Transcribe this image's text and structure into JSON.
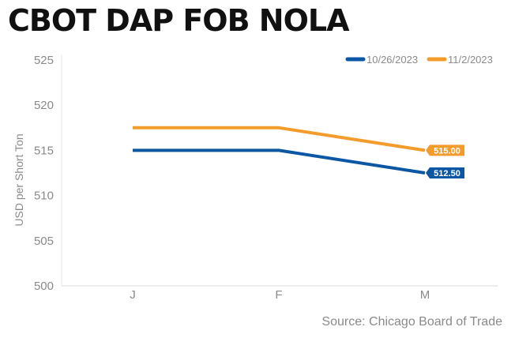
{
  "chart_data": {
    "type": "line",
    "title": "CBOT DAP FOB NOLA",
    "ylabel": "USD per Short Ton",
    "xlabel": "",
    "categories": [
      "J",
      "F",
      "M"
    ],
    "ylim": [
      500,
      525
    ],
    "yticks": [
      525,
      520,
      515,
      510,
      505,
      500
    ],
    "legend_position": "top-right",
    "grid": false,
    "series": [
      {
        "name": "10/26/2023",
        "values": [
          515.0,
          515.0,
          512.5
        ],
        "color": "#0b57a4",
        "end_label": "512.50"
      },
      {
        "name": "11/2/2023",
        "values": [
          517.5,
          517.5,
          515.0
        ],
        "color": "#f39c2c",
        "end_label": "515.00"
      }
    ]
  },
  "source": "Source: Chicago Board of Trade"
}
